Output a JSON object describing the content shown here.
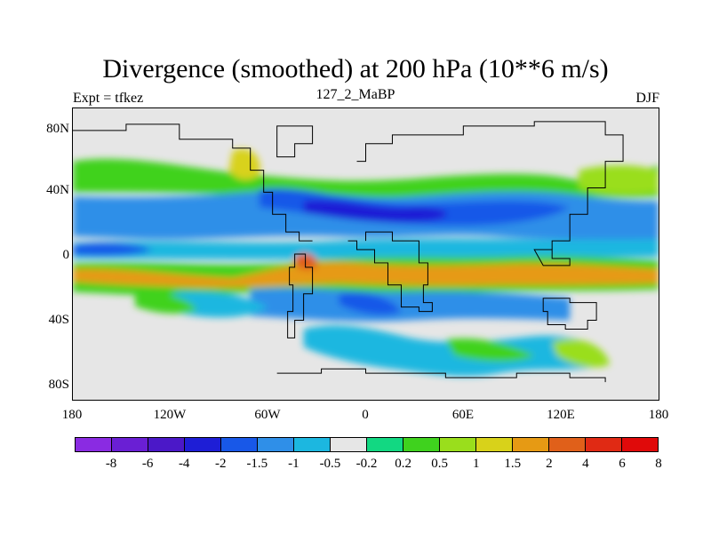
{
  "title": "Divergence (smoothed) at 200 hPa (10**6 m/s)",
  "subtitle_left": "Expt = tfkez",
  "subtitle_center": "127_2_MaBP",
  "subtitle_right": "DJF",
  "lat_labels": [
    "80N",
    "40N",
    "0",
    "40S",
    "80S"
  ],
  "lon_labels": [
    "180",
    "120W",
    "60W",
    "0",
    "60E",
    "120E",
    "180"
  ],
  "colorbar": {
    "colors": [
      "#8a2be2",
      "#6a1fd4",
      "#4b18c8",
      "#1e1ed6",
      "#1858e8",
      "#2f8fe8",
      "#1cb7e0",
      "#e6e6e6",
      "#12d882",
      "#3fd21e",
      "#9ade1c",
      "#d8d21a",
      "#e69a14",
      "#e0601a",
      "#e02a14",
      "#e00a0a"
    ],
    "labels": [
      "-8",
      "-6",
      "-4",
      "-2",
      "-1.5",
      "-1",
      "-0.5",
      "-0.2",
      "0.2",
      "0.5",
      "1",
      "1.5",
      "2",
      "4",
      "6",
      "8"
    ]
  },
  "map": {
    "background": "#e6e6e6",
    "coastline_color": "#000000"
  }
}
